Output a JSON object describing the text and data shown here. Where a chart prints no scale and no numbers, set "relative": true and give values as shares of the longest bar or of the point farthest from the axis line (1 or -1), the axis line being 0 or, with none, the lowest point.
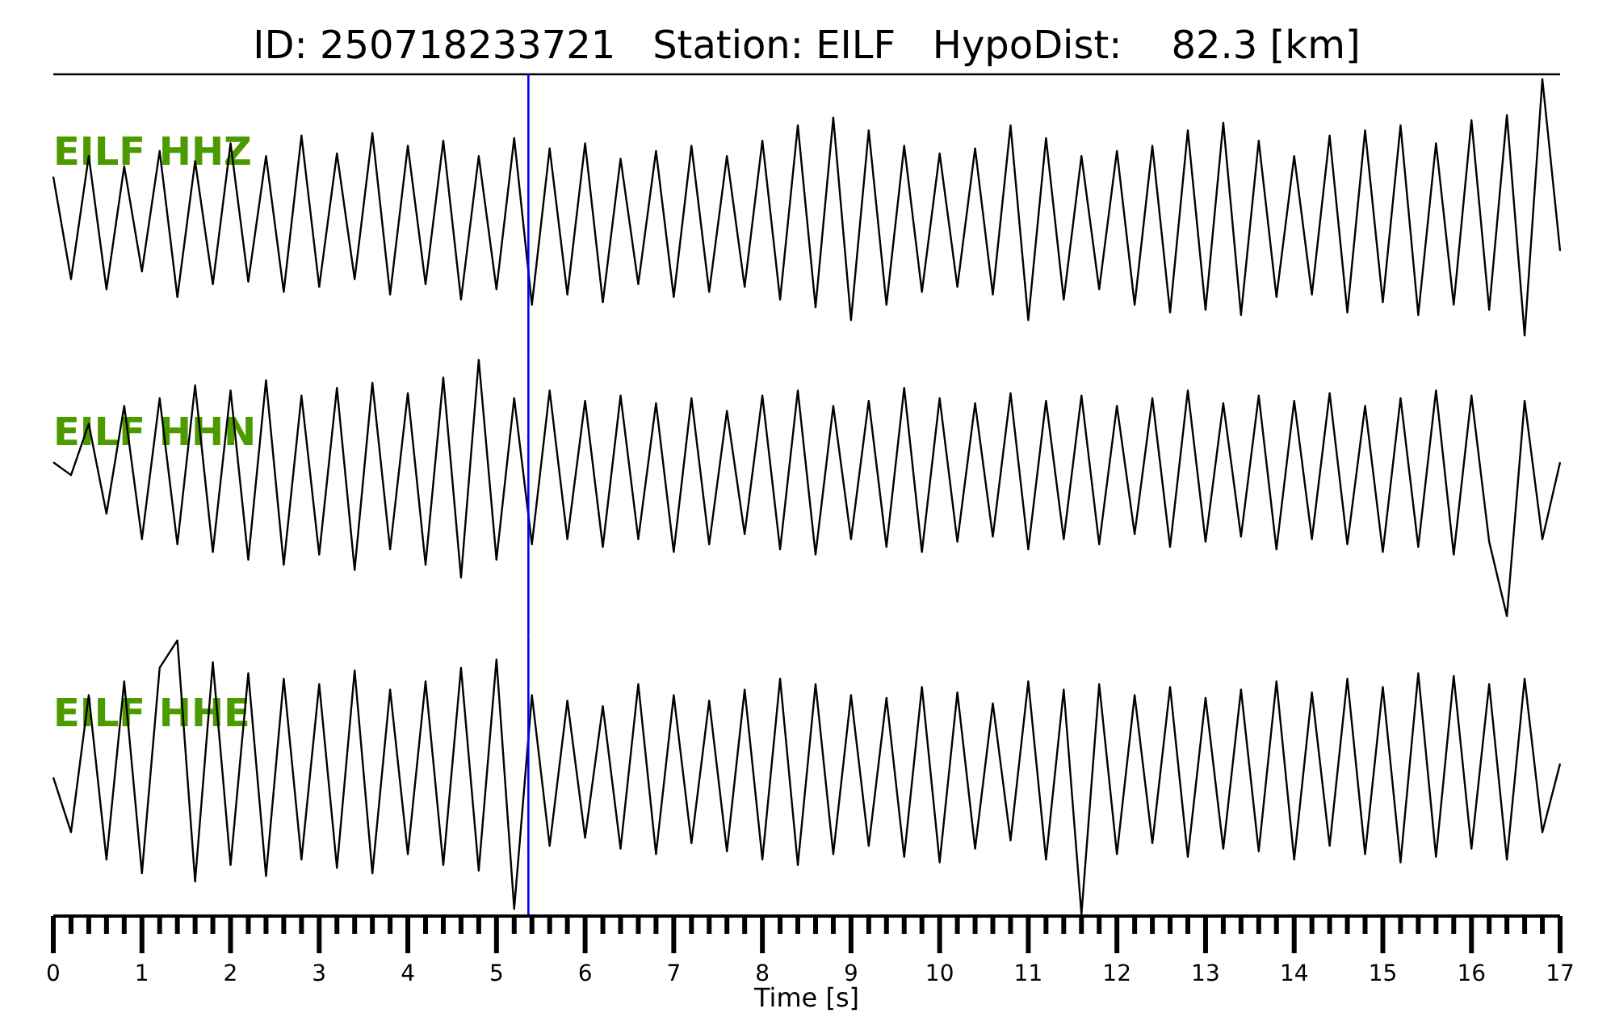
{
  "chart_data": [
    {
      "type": "line",
      "title": "ID: 250718233721   Station: EILF   HypoDist:    82.3 [km]",
      "relative": true,
      "legend": false,
      "xlim": [
        0,
        17
      ],
      "ref_lines": [
        {
          "axis": "x",
          "value": 5.36,
          "color": "#0000ff"
        }
      ],
      "series": [
        {
          "name": "EILF HHZ",
          "color": "#000000",
          "x": [
            0,
            0.2,
            0.4,
            0.6,
            0.8,
            1,
            1.2,
            1.4,
            1.6,
            1.8,
            2,
            2.2,
            2.4,
            2.6,
            2.8,
            3,
            3.2,
            3.4,
            3.6,
            3.8,
            4,
            4.2,
            4.4,
            4.6,
            4.8,
            5,
            5.2,
            5.4,
            5.6,
            5.8,
            6,
            6.2,
            6.4,
            6.6,
            6.8,
            7,
            7.2,
            7.4,
            7.6,
            7.8,
            8,
            8.2,
            8.4,
            8.6,
            8.8,
            9,
            9.2,
            9.4,
            9.6,
            9.8,
            10,
            10.2,
            10.4,
            10.6,
            10.8,
            11,
            11.2,
            11.4,
            11.6,
            11.8,
            12,
            12.2,
            12.4,
            12.6,
            12.8,
            13,
            13.2,
            13.4,
            13.6,
            13.8,
            14,
            14.2,
            14.4,
            14.6,
            14.8,
            15,
            15.2,
            15.4,
            15.6,
            15.8,
            16,
            16.2,
            16.4,
            16.6,
            16.8,
            17
          ],
          "values": [
            0.62,
            0.22,
            0.7,
            0.18,
            0.66,
            0.25,
            0.72,
            0.15,
            0.68,
            0.2,
            0.75,
            0.21,
            0.7,
            0.17,
            0.78,
            0.19,
            0.71,
            0.22,
            0.79,
            0.16,
            0.74,
            0.2,
            0.76,
            0.14,
            0.7,
            0.18,
            0.77,
            0.12,
            0.73,
            0.16,
            0.75,
            0.13,
            0.69,
            0.2,
            0.72,
            0.15,
            0.74,
            0.17,
            0.7,
            0.19,
            0.76,
            0.14,
            0.82,
            0.11,
            0.85,
            0.06,
            0.8,
            0.12,
            0.74,
            0.17,
            0.71,
            0.19,
            0.73,
            0.16,
            0.82,
            0.06,
            0.77,
            0.14,
            0.7,
            0.18,
            0.72,
            0.12,
            0.74,
            0.09,
            0.8,
            0.1,
            0.83,
            0.08,
            0.76,
            0.15,
            0.7,
            0.16,
            0.78,
            0.09,
            0.8,
            0.13,
            0.82,
            0.08,
            0.75,
            0.12,
            0.84,
            0.1,
            0.86,
            0.0,
            1.0,
            0.33
          ]
        }
      ]
    },
    {
      "type": "line",
      "relative": true,
      "legend": false,
      "xlim": [
        0,
        17
      ],
      "ref_lines": [
        {
          "axis": "x",
          "value": 5.36,
          "color": "#0000ff"
        }
      ],
      "series": [
        {
          "name": "EILF HHN",
          "color": "#000000",
          "x": [
            0,
            0.2,
            0.4,
            0.6,
            0.8,
            1,
            1.2,
            1.4,
            1.6,
            1.8,
            2,
            2.2,
            2.4,
            2.6,
            2.8,
            3,
            3.2,
            3.4,
            3.6,
            3.8,
            4,
            4.2,
            4.4,
            4.6,
            4.8,
            5,
            5.2,
            5.4,
            5.6,
            5.8,
            6,
            6.2,
            6.4,
            6.6,
            6.8,
            7,
            7.2,
            7.4,
            7.6,
            7.8,
            8,
            8.2,
            8.4,
            8.6,
            8.8,
            9,
            9.2,
            9.4,
            9.6,
            9.8,
            10,
            10.2,
            10.4,
            10.6,
            10.8,
            11,
            11.2,
            11.4,
            11.6,
            11.8,
            12,
            12.2,
            12.4,
            12.6,
            12.8,
            13,
            13.2,
            13.4,
            13.6,
            13.8,
            14,
            14.2,
            14.4,
            14.6,
            14.8,
            15,
            15.2,
            15.4,
            15.6,
            15.8,
            16,
            16.2,
            16.4,
            16.6,
            16.8,
            17
          ],
          "values": [
            0.6,
            0.55,
            0.75,
            0.4,
            0.82,
            0.3,
            0.85,
            0.28,
            0.9,
            0.25,
            0.88,
            0.22,
            0.92,
            0.2,
            0.86,
            0.24,
            0.89,
            0.18,
            0.91,
            0.26,
            0.87,
            0.2,
            0.93,
            0.15,
            1.0,
            0.22,
            0.85,
            0.28,
            0.88,
            0.3,
            0.84,
            0.27,
            0.86,
            0.3,
            0.83,
            0.25,
            0.85,
            0.28,
            0.8,
            0.32,
            0.86,
            0.26,
            0.88,
            0.24,
            0.82,
            0.3,
            0.84,
            0.27,
            0.89,
            0.25,
            0.85,
            0.29,
            0.83,
            0.31,
            0.87,
            0.26,
            0.84,
            0.3,
            0.86,
            0.28,
            0.82,
            0.32,
            0.85,
            0.27,
            0.88,
            0.29,
            0.83,
            0.31,
            0.86,
            0.26,
            0.84,
            0.3,
            0.87,
            0.28,
            0.82,
            0.25,
            0.85,
            0.27,
            0.88,
            0.24,
            0.86,
            0.29,
            0.0,
            0.84,
            0.3,
            0.6
          ]
        }
      ]
    },
    {
      "type": "line",
      "relative": true,
      "legend": false,
      "xlim": [
        0,
        17
      ],
      "xlabel": "Time [s]",
      "xticks": [
        0,
        {
          "value": 0.2,
          "label": null
        },
        {
          "value": 0.4,
          "label": null
        },
        {
          "value": 0.6,
          "label": null
        },
        {
          "value": 0.8,
          "label": null
        },
        1,
        {
          "value": 1.2,
          "label": null
        },
        {
          "value": 1.4,
          "label": null
        },
        {
          "value": 1.6,
          "label": null
        },
        {
          "value": 1.8,
          "label": null
        },
        2,
        {
          "value": 2.2,
          "label": null
        },
        {
          "value": 2.4,
          "label": null
        },
        {
          "value": 2.6,
          "label": null
        },
        {
          "value": 2.8,
          "label": null
        },
        3,
        {
          "value": 3.2,
          "label": null
        },
        {
          "value": 3.4,
          "label": null
        },
        {
          "value": 3.6,
          "label": null
        },
        {
          "value": 3.8,
          "label": null
        },
        4,
        {
          "value": 4.2,
          "label": null
        },
        {
          "value": 4.4,
          "label": null
        },
        {
          "value": 4.6,
          "label": null
        },
        {
          "value": 4.8,
          "label": null
        },
        5,
        {
          "value": 5.2,
          "label": null
        },
        {
          "value": 5.4,
          "label": null
        },
        {
          "value": 5.6,
          "label": null
        },
        {
          "value": 5.8,
          "label": null
        },
        6,
        {
          "value": 6.2,
          "label": null
        },
        {
          "value": 6.4,
          "label": null
        },
        {
          "value": 6.6,
          "label": null
        },
        {
          "value": 6.8,
          "label": null
        },
        7,
        {
          "value": 7.2,
          "label": null
        },
        {
          "value": 7.4,
          "label": null
        },
        {
          "value": 7.6,
          "label": null
        },
        {
          "value": 7.8,
          "label": null
        },
        8,
        {
          "value": 8.2,
          "label": null
        },
        {
          "value": 8.4,
          "label": null
        },
        {
          "value": 8.6,
          "label": null
        },
        {
          "value": 8.8,
          "label": null
        },
        9,
        {
          "value": 9.2,
          "label": null
        },
        {
          "value": 9.4,
          "label": null
        },
        {
          "value": 9.6,
          "label": null
        },
        {
          "value": 9.8,
          "label": null
        },
        10,
        {
          "value": 10.2,
          "label": null
        },
        {
          "value": 10.4,
          "label": null
        },
        {
          "value": 10.6,
          "label": null
        },
        {
          "value": 10.8,
          "label": null
        },
        11,
        {
          "value": 11.2,
          "label": null
        },
        {
          "value": 11.4,
          "label": null
        },
        {
          "value": 11.6,
          "label": null
        },
        {
          "value": 11.8,
          "label": null
        },
        12,
        {
          "value": 12.2,
          "label": null
        },
        {
          "value": 12.4,
          "label": null
        },
        {
          "value": 12.6,
          "label": null
        },
        {
          "value": 12.8,
          "label": null
        },
        13,
        {
          "value": 13.2,
          "label": null
        },
        {
          "value": 13.4,
          "label": null
        },
        {
          "value": 13.6,
          "label": null
        },
        {
          "value": 13.8,
          "label": null
        },
        14,
        {
          "value": 14.2,
          "label": null
        },
        {
          "value": 14.4,
          "label": null
        },
        {
          "value": 14.6,
          "label": null
        },
        {
          "value": 14.8,
          "label": null
        },
        15,
        {
          "value": 15.2,
          "label": null
        },
        {
          "value": 15.4,
          "label": null
        },
        {
          "value": 15.6,
          "label": null
        },
        {
          "value": 15.8,
          "label": null
        },
        16,
        {
          "value": 16.2,
          "label": null
        },
        {
          "value": 16.4,
          "label": null
        },
        {
          "value": 16.6,
          "label": null
        },
        {
          "value": 16.8,
          "label": null
        },
        17
      ],
      "ref_lines": [
        {
          "axis": "x",
          "value": 5.36,
          "color": "#0000ff"
        }
      ],
      "series": [
        {
          "name": "EILF HHE",
          "color": "#000000",
          "x": [
            0,
            0.2,
            0.4,
            0.6,
            0.8,
            1,
            1.2,
            1.4,
            1.6,
            1.8,
            2,
            2.2,
            2.4,
            2.6,
            2.8,
            3,
            3.2,
            3.4,
            3.6,
            3.8,
            4,
            4.2,
            4.4,
            4.6,
            4.8,
            5,
            5.2,
            5.4,
            5.6,
            5.8,
            6,
            6.2,
            6.4,
            6.6,
            6.8,
            7,
            7.2,
            7.4,
            7.6,
            7.8,
            8,
            8.2,
            8.4,
            8.6,
            8.8,
            9,
            9.2,
            9.4,
            9.6,
            9.8,
            10,
            10.2,
            10.4,
            10.6,
            10.8,
            11,
            11.2,
            11.4,
            11.6,
            11.8,
            12,
            12.2,
            12.4,
            12.6,
            12.8,
            13,
            13.2,
            13.4,
            13.6,
            13.8,
            14,
            14.2,
            14.4,
            14.6,
            14.8,
            15,
            15.2,
            15.4,
            15.6,
            15.8,
            16,
            16.2,
            16.4,
            16.6,
            16.8,
            17
          ],
          "values": [
            0.5,
            0.3,
            0.8,
            0.2,
            0.85,
            0.15,
            0.9,
            1.0,
            0.12,
            0.92,
            0.18,
            0.88,
            0.14,
            0.86,
            0.2,
            0.84,
            0.17,
            0.89,
            0.15,
            0.82,
            0.22,
            0.85,
            0.18,
            0.9,
            0.16,
            0.93,
            0.02,
            0.8,
            0.25,
            0.78,
            0.28,
            0.76,
            0.24,
            0.84,
            0.22,
            0.8,
            0.26,
            0.78,
            0.23,
            0.82,
            0.2,
            0.86,
            0.18,
            0.84,
            0.22,
            0.8,
            0.25,
            0.79,
            0.21,
            0.83,
            0.19,
            0.81,
            0.24,
            0.77,
            0.27,
            0.85,
            0.2,
            0.82,
            0.0,
            0.84,
            0.22,
            0.8,
            0.26,
            0.83,
            0.21,
            0.79,
            0.24,
            0.82,
            0.23,
            0.85,
            0.2,
            0.81,
            0.25,
            0.86,
            0.22,
            0.83,
            0.19,
            0.88,
            0.21,
            0.87,
            0.24,
            0.84,
            0.2,
            0.86,
            0.3,
            0.55
          ]
        }
      ]
    }
  ]
}
